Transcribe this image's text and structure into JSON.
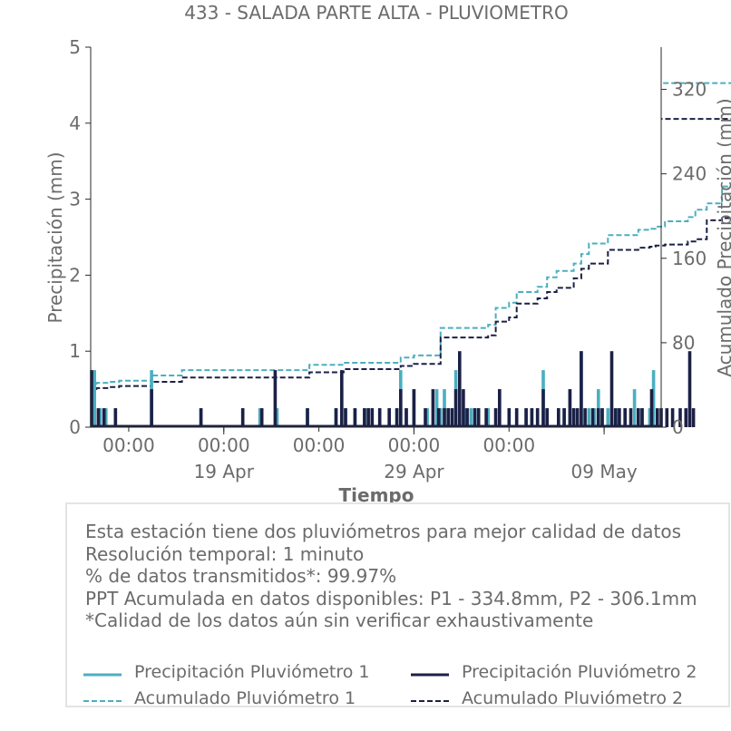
{
  "chart_data": {
    "type": "bar+line",
    "title": "433 - SALADA PARTE ALTA - PLUVIOMETRO",
    "xlabel": "Tiempo",
    "ylabel_left": "Precipitación (mm)",
    "ylabel_right": "Acumulado Precipitación (mm)",
    "x_range": [
      "2025-04-12",
      "2025-05-12"
    ],
    "ylim_left": [
      0,
      5
    ],
    "ylim_right": [
      0,
      360
    ],
    "yticks_left": [
      "0",
      "1",
      "2",
      "3",
      "4",
      "5"
    ],
    "yticks_right": [
      "0",
      "80",
      "160",
      "240",
      "320"
    ],
    "x_tick_labels_top": [
      "00:00",
      "00:00",
      "00:00",
      "00:00",
      "00:00"
    ],
    "x_tick_labels_bottom": [
      "19 Apr",
      "29 Apr",
      "09 May"
    ],
    "grid": false,
    "series": [
      {
        "name": "Precipitación Pluviómetro 1",
        "kind": "bar",
        "color": "#4bafc0",
        "points": [
          [
            0.2,
            0.75
          ],
          [
            0.5,
            0.25
          ],
          [
            0.8,
            0.25
          ],
          [
            1.3,
            0.25
          ],
          [
            3.2,
            0.75
          ],
          [
            5.8,
            0.25
          ],
          [
            8.0,
            0.25
          ],
          [
            8.9,
            0.25
          ],
          [
            9.8,
            0.25
          ],
          [
            11.4,
            0.25
          ],
          [
            12.9,
            0.25
          ],
          [
            13.2,
            0.5
          ],
          [
            13.4,
            0.25
          ],
          [
            13.9,
            0.25
          ],
          [
            14.4,
            0.25
          ],
          [
            14.6,
            0.25
          ],
          [
            14.8,
            0.25
          ],
          [
            15.2,
            0.25
          ],
          [
            15.7,
            0.25
          ],
          [
            16.1,
            0.25
          ],
          [
            16.3,
            0.75
          ],
          [
            16.6,
            0.25
          ],
          [
            17.0,
            0.5
          ],
          [
            17.7,
            0.25
          ],
          [
            18.2,
            0.5
          ],
          [
            18.4,
            0.25
          ],
          [
            18.6,
            0.5
          ],
          [
            18.8,
            0.25
          ],
          [
            19.0,
            0.25
          ],
          [
            19.2,
            0.75
          ],
          [
            19.4,
            0.5
          ],
          [
            19.7,
            0.25
          ],
          [
            20.0,
            0.25
          ],
          [
            20.2,
            0.25
          ],
          [
            20.4,
            0.25
          ],
          [
            20.9,
            0.25
          ],
          [
            21.3,
            0.25
          ],
          [
            21.5,
            0.5
          ],
          [
            22.0,
            0.25
          ],
          [
            22.4,
            0.25
          ],
          [
            22.9,
            0.25
          ],
          [
            23.2,
            0.25
          ],
          [
            23.5,
            0.25
          ],
          [
            23.8,
            0.75
          ],
          [
            24.0,
            0.25
          ],
          [
            24.6,
            0.25
          ],
          [
            24.9,
            0.25
          ],
          [
            25.2,
            0.5
          ],
          [
            25.4,
            0.25
          ],
          [
            25.6,
            0.25
          ],
          [
            25.8,
            1.0
          ],
          [
            26.2,
            0.25
          ],
          [
            26.5,
            0.25
          ],
          [
            26.7,
            0.5
          ],
          [
            26.9,
            0.25
          ],
          [
            27.2,
            0.25
          ],
          [
            27.4,
            0.25
          ],
          [
            27.7,
            0.25
          ],
          [
            28.1,
            0.25
          ],
          [
            28.6,
            0.5
          ],
          [
            28.8,
            0.25
          ],
          [
            29.0,
            0.25
          ],
          [
            29.4,
            0.25
          ],
          [
            29.6,
            0.75
          ]
        ]
      },
      {
        "name": "Precipitación Pluviómetro 2",
        "kind": "bar",
        "color": "#1c2045",
        "points": [
          [
            0.05,
            0.75
          ],
          [
            0.4,
            0.25
          ],
          [
            0.7,
            0.25
          ],
          [
            1.3,
            0.25
          ],
          [
            3.2,
            0.5
          ],
          [
            5.8,
            0.25
          ],
          [
            8.0,
            0.25
          ],
          [
            9.0,
            0.25
          ],
          [
            9.7,
            0.75
          ],
          [
            11.4,
            0.25
          ],
          [
            12.9,
            0.25
          ],
          [
            13.2,
            0.75
          ],
          [
            13.4,
            0.25
          ],
          [
            13.9,
            0.25
          ],
          [
            14.4,
            0.25
          ],
          [
            14.6,
            0.25
          ],
          [
            14.8,
            0.25
          ],
          [
            15.2,
            0.25
          ],
          [
            15.7,
            0.25
          ],
          [
            16.1,
            0.25
          ],
          [
            16.3,
            0.5
          ],
          [
            16.6,
            0.25
          ],
          [
            17.0,
            0.5
          ],
          [
            17.6,
            0.25
          ],
          [
            18.0,
            0.5
          ],
          [
            18.3,
            0.25
          ],
          [
            18.6,
            0.25
          ],
          [
            18.8,
            0.25
          ],
          [
            19.0,
            0.25
          ],
          [
            19.2,
            0.5
          ],
          [
            19.4,
            1.0
          ],
          [
            19.6,
            0.5
          ],
          [
            19.8,
            0.25
          ],
          [
            20.2,
            0.25
          ],
          [
            20.4,
            0.25
          ],
          [
            20.8,
            0.25
          ],
          [
            21.3,
            0.25
          ],
          [
            21.5,
            0.5
          ],
          [
            22.0,
            0.25
          ],
          [
            22.4,
            0.25
          ],
          [
            22.9,
            0.25
          ],
          [
            23.2,
            0.25
          ],
          [
            23.5,
            0.25
          ],
          [
            23.8,
            0.5
          ],
          [
            24.0,
            0.25
          ],
          [
            24.6,
            0.25
          ],
          [
            24.9,
            0.25
          ],
          [
            25.2,
            0.5
          ],
          [
            25.4,
            0.25
          ],
          [
            25.6,
            0.25
          ],
          [
            25.8,
            1.0
          ],
          [
            26.0,
            0.25
          ],
          [
            26.4,
            0.25
          ],
          [
            26.7,
            0.25
          ],
          [
            26.9,
            0.25
          ],
          [
            27.4,
            1.0
          ],
          [
            27.6,
            0.25
          ],
          [
            27.8,
            0.25
          ],
          [
            28.1,
            0.25
          ],
          [
            28.4,
            0.25
          ],
          [
            28.8,
            0.25
          ],
          [
            29.0,
            0.25
          ],
          [
            29.5,
            0.5
          ],
          [
            29.8,
            0.25
          ],
          [
            30.0,
            0.25
          ],
          [
            30.3,
            0.25
          ],
          [
            30.6,
            0.25
          ],
          [
            31.0,
            0.25
          ],
          [
            31.3,
            0.25
          ],
          [
            31.5,
            1.0
          ],
          [
            31.7,
            0.25
          ]
        ]
      },
      {
        "name": "Acumulado Pluviómetro 1",
        "kind": "cumulative",
        "color": "#4bafc0",
        "dashed": true,
        "points": [
          [
            0.0,
            38
          ],
          [
            0.3,
            42
          ],
          [
            1.0,
            43
          ],
          [
            1.5,
            44
          ],
          [
            3.2,
            49
          ],
          [
            4.8,
            54
          ],
          [
            11.5,
            59
          ],
          [
            13.3,
            61
          ],
          [
            16.3,
            66
          ],
          [
            17.0,
            68
          ],
          [
            18.4,
            94
          ],
          [
            20.9,
            97
          ],
          [
            21.3,
            113
          ],
          [
            22.0,
            118
          ],
          [
            22.4,
            128
          ],
          [
            23.5,
            133
          ],
          [
            24.0,
            142
          ],
          [
            24.5,
            148
          ],
          [
            25.4,
            155
          ],
          [
            25.8,
            164
          ],
          [
            26.2,
            174
          ],
          [
            27.2,
            182
          ],
          [
            28.8,
            187
          ],
          [
            29.4,
            188
          ],
          [
            29.7,
            190
          ],
          [
            30.2,
            195
          ],
          [
            31.4,
            199
          ],
          [
            31.8,
            206
          ],
          [
            32.4,
            212
          ],
          [
            33.2,
            228
          ],
          [
            34.5,
            244
          ],
          [
            35.5,
            264
          ],
          [
            36.5,
            283
          ],
          [
            37.0,
            288
          ],
          [
            37.5,
            294
          ],
          [
            38.2,
            296
          ],
          [
            39.2,
            300
          ],
          [
            40.4,
            304
          ],
          [
            41.6,
            312
          ],
          [
            42.4,
            326
          ]
        ]
      },
      {
        "name": "Acumulado Pluviómetro 2",
        "kind": "cumulative",
        "color": "#1c2045",
        "dashed": true,
        "points": [
          [
            0.0,
            33
          ],
          [
            0.3,
            37
          ],
          [
            1.0,
            38
          ],
          [
            1.5,
            39
          ],
          [
            3.2,
            43
          ],
          [
            4.8,
            47
          ],
          [
            11.5,
            52
          ],
          [
            13.3,
            55
          ],
          [
            16.3,
            58
          ],
          [
            17.0,
            60
          ],
          [
            18.4,
            85
          ],
          [
            20.9,
            87
          ],
          [
            21.3,
            100
          ],
          [
            22.0,
            104
          ],
          [
            22.4,
            117
          ],
          [
            23.5,
            122
          ],
          [
            24.0,
            128
          ],
          [
            24.5,
            132
          ],
          [
            25.4,
            141
          ],
          [
            25.8,
            150
          ],
          [
            26.2,
            155
          ],
          [
            27.2,
            168
          ],
          [
            28.8,
            170
          ],
          [
            29.4,
            171
          ],
          [
            29.7,
            172
          ],
          [
            30.2,
            173
          ],
          [
            31.4,
            176
          ],
          [
            31.8,
            178
          ],
          [
            32.4,
            196
          ],
          [
            33.2,
            198
          ],
          [
            34.5,
            202
          ],
          [
            35.5,
            225
          ],
          [
            36.5,
            245
          ],
          [
            37.0,
            258
          ],
          [
            37.5,
            264
          ],
          [
            38.2,
            265
          ],
          [
            39.2,
            268
          ],
          [
            40.4,
            271
          ],
          [
            41.6,
            276
          ],
          [
            42.4,
            292
          ]
        ]
      }
    ]
  },
  "info": {
    "line1": "Esta estación tiene dos pluviómetros para mejor calidad de datos",
    "line2": "Resolución temporal: 1 minuto",
    "line3": "% de datos transmitidos*: 99.97%",
    "line4": "PPT Acumulada en datos disponibles: P1 - 334.8mm, P2 - 306.1mm",
    "line5": "*Calidad de los datos aún sin verificar exhaustivamente"
  },
  "legend": {
    "p1": "Precipitación Pluviómetro 1",
    "p2": "Precipitación Pluviómetro 2",
    "a1": "Acumulado Pluviómetro 1",
    "a2": "Acumulado Pluviómetro 2"
  },
  "colors": {
    "p1": "#4bafc0",
    "p2": "#1c2045",
    "text": "#6b6b6b",
    "axis": "#2a2a2a"
  }
}
